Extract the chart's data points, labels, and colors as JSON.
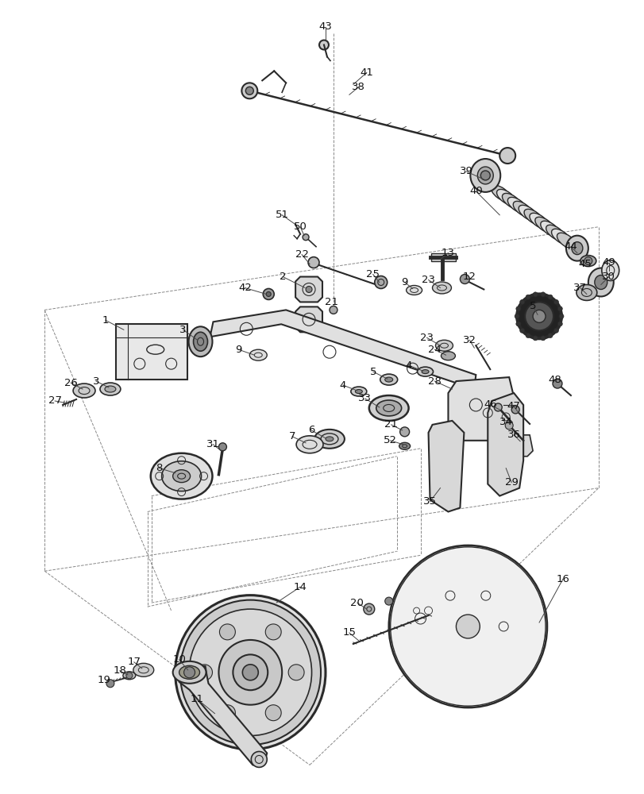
{
  "bg_color": "#ffffff",
  "fig_width": 8.12,
  "fig_height": 10.0,
  "dpi": 100,
  "line_color": "#2a2a2a",
  "label_fontsize": 9.5,
  "diagram_color": "#2a2a2a"
}
